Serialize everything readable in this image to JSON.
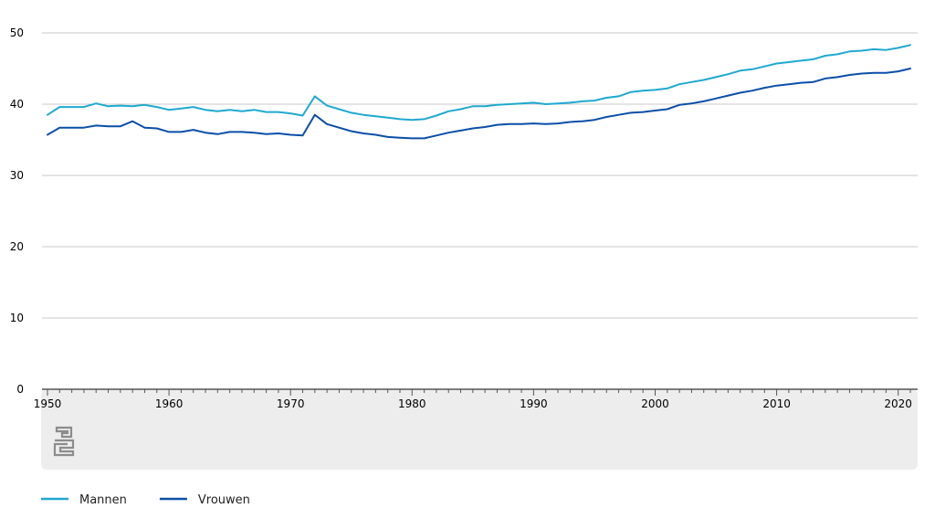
{
  "colors": {
    "mannen": "#1fa9d0",
    "vrouwen": "#0b4fa8",
    "grid": "#c8c8c8",
    "footer_band": "#ededed",
    "logo": "#8c8c8c"
  },
  "logo": {
    "icon": "cbs-logo-icon"
  },
  "chart_data": {
    "type": "line",
    "title": "",
    "xlabel": "",
    "ylabel": "",
    "xlim": [
      1950,
      2021
    ],
    "ylim": [
      0,
      50
    ],
    "yticks": [
      0,
      10,
      20,
      30,
      40,
      50
    ],
    "xticks": [
      1950,
      1960,
      1970,
      1980,
      1990,
      2000,
      2010,
      2020
    ],
    "grid": true,
    "legend": "bottom-left",
    "x": [
      1950,
      1951,
      1952,
      1953,
      1954,
      1955,
      1956,
      1957,
      1958,
      1959,
      1960,
      1961,
      1962,
      1963,
      1964,
      1965,
      1966,
      1967,
      1968,
      1969,
      1970,
      1971,
      1972,
      1973,
      1974,
      1975,
      1976,
      1977,
      1978,
      1979,
      1980,
      1981,
      1982,
      1983,
      1984,
      1985,
      1986,
      1987,
      1988,
      1989,
      1990,
      1991,
      1992,
      1993,
      1994,
      1995,
      1996,
      1997,
      1998,
      1999,
      2000,
      2001,
      2002,
      2003,
      2004,
      2005,
      2006,
      2007,
      2008,
      2009,
      2010,
      2011,
      2012,
      2013,
      2014,
      2015,
      2016,
      2017,
      2018,
      2019,
      2020,
      2021
    ],
    "series": [
      {
        "name": "Mannen",
        "color": "#1fa9d0",
        "values": [
          38.5,
          39.6,
          39.6,
          39.6,
          40.1,
          39.7,
          39.8,
          39.7,
          39.9,
          39.6,
          39.2,
          39.4,
          39.6,
          39.2,
          39.0,
          39.2,
          39.0,
          39.2,
          38.9,
          38.9,
          38.7,
          38.4,
          41.1,
          39.8,
          39.3,
          38.8,
          38.5,
          38.3,
          38.1,
          37.9,
          37.8,
          37.9,
          38.4,
          39.0,
          39.3,
          39.7,
          39.7,
          39.9,
          40.0,
          40.1,
          40.2,
          40.0,
          40.1,
          40.2,
          40.4,
          40.5,
          40.9,
          41.1,
          41.7,
          41.9,
          42.0,
          42.2,
          42.8,
          43.1,
          43.4,
          43.8,
          44.2,
          44.7,
          44.9,
          45.3,
          45.7,
          45.9,
          46.1,
          46.3,
          46.8,
          47.0,
          47.4,
          47.5,
          47.7,
          47.6,
          47.9,
          48.3
        ]
      },
      {
        "name": "Vrouwen",
        "color": "#0b4fa8",
        "values": [
          35.7,
          36.7,
          36.7,
          36.7,
          37.0,
          36.9,
          36.9,
          37.6,
          36.7,
          36.6,
          36.1,
          36.1,
          36.4,
          36.0,
          35.8,
          36.1,
          36.1,
          36.0,
          35.8,
          35.9,
          35.7,
          35.6,
          38.5,
          37.2,
          36.7,
          36.2,
          35.9,
          35.7,
          35.4,
          35.3,
          35.2,
          35.2,
          35.6,
          36.0,
          36.3,
          36.6,
          36.8,
          37.1,
          37.2,
          37.2,
          37.3,
          37.2,
          37.3,
          37.5,
          37.6,
          37.8,
          38.2,
          38.5,
          38.8,
          38.9,
          39.1,
          39.3,
          39.9,
          40.1,
          40.4,
          40.8,
          41.2,
          41.6,
          41.9,
          42.3,
          42.6,
          42.8,
          43.0,
          43.1,
          43.6,
          43.8,
          44.1,
          44.3,
          44.4,
          44.4,
          44.6,
          45.0
        ]
      }
    ]
  }
}
